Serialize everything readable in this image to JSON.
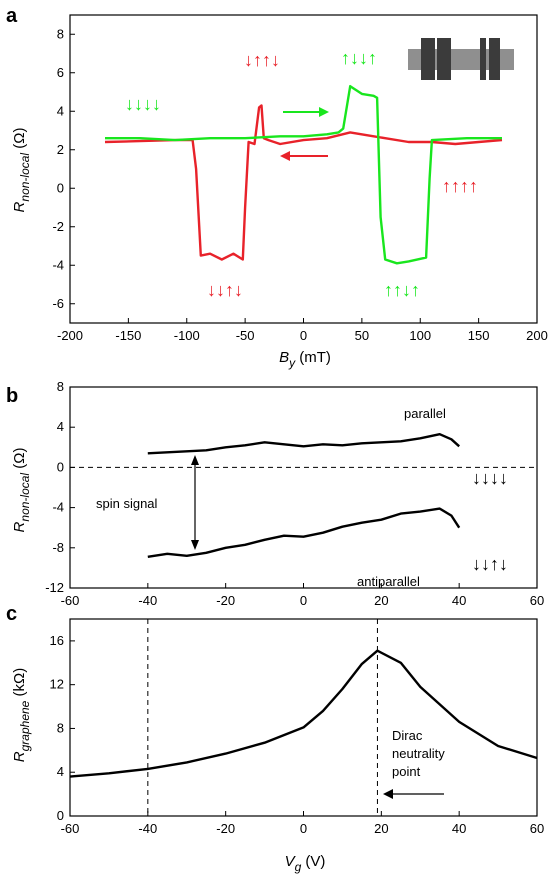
{
  "chart_data": [
    {
      "panel": "a",
      "type": "line",
      "xlabel": "B",
      "xlabel_sub": "y",
      "xunit": " (mT)",
      "ylabel": "R",
      "ylabel_sub": "non-local",
      "yunit": " (Ω)",
      "xlim": [
        -200,
        200
      ],
      "ylim": [
        -7,
        9
      ],
      "xticks": [
        -200,
        -150,
        -100,
        -50,
        0,
        50,
        100,
        150,
        200
      ],
      "yticks": [
        -6,
        -4,
        -2,
        0,
        2,
        4,
        6,
        8
      ],
      "series": [
        {
          "color": "#e8222a",
          "x": [
            -170,
            -140,
            -110,
            -95,
            -92,
            -88,
            -80,
            -70,
            -60,
            -52,
            -50,
            -47,
            -42,
            -38,
            -36,
            -34,
            -30,
            -20,
            0,
            20,
            40,
            60,
            70,
            90,
            110,
            130,
            150,
            170
          ],
          "y": [
            2.4,
            2.45,
            2.5,
            2.5,
            1.0,
            -3.5,
            -3.4,
            -3.7,
            -3.4,
            -3.7,
            -1.0,
            2.4,
            2.3,
            4.2,
            4.3,
            2.6,
            2.5,
            2.3,
            2.5,
            2.6,
            2.9,
            2.7,
            2.6,
            2.4,
            2.4,
            2.3,
            2.4,
            2.5
          ]
        },
        {
          "color": "#19e61e",
          "x": [
            170,
            140,
            110,
            108,
            105,
            90,
            80,
            70,
            66,
            63,
            60,
            50,
            40,
            37,
            34,
            30,
            20,
            0,
            -20,
            -50,
            -80,
            -110,
            -140,
            -170
          ],
          "y": [
            2.6,
            2.6,
            2.5,
            0.5,
            -3.6,
            -3.8,
            -3.9,
            -3.7,
            -1.5,
            4.7,
            4.8,
            4.9,
            5.3,
            4.2,
            3.1,
            2.9,
            2.8,
            2.7,
            2.7,
            2.6,
            2.6,
            2.5,
            2.6,
            2.6
          ]
        }
      ],
      "annotations": {
        "green_down": "↓↓↓↓",
        "red_top": "↓↑↑↓",
        "green_top": "↑↓↓↑",
        "red_right": "↑↑↑↑",
        "red_bottom": "↓↓↑↓",
        "green_bottom": "↑↑↓↑"
      }
    },
    {
      "panel": "b",
      "type": "line",
      "xlim": [
        -60,
        60
      ],
      "ylim": [
        -12,
        8
      ],
      "xticks": [
        -60,
        -40,
        -20,
        0,
        20,
        40,
        60
      ],
      "yticks": [
        -12,
        -8,
        -4,
        0,
        4,
        8
      ],
      "ylabel": "R",
      "ylabel_sub": "non-local",
      "yunit": " (Ω)",
      "series": [
        {
          "name": "parallel",
          "color": "#000000",
          "x": [
            -40,
            -35,
            -30,
            -25,
            -20,
            -15,
            -10,
            -5,
            0,
            5,
            10,
            15,
            20,
            25,
            30,
            35,
            38,
            40
          ],
          "y": [
            1.4,
            1.5,
            1.6,
            1.7,
            2.0,
            2.2,
            2.5,
            2.3,
            2.1,
            2.3,
            2.2,
            2.4,
            2.5,
            2.6,
            2.9,
            3.3,
            2.8,
            2.1
          ]
        },
        {
          "name": "antiparallel",
          "color": "#000000",
          "x": [
            -40,
            -35,
            -30,
            -25,
            -20,
            -15,
            -10,
            -5,
            0,
            5,
            10,
            15,
            20,
            25,
            30,
            35,
            38,
            40
          ],
          "y": [
            -8.9,
            -8.6,
            -8.8,
            -8.5,
            -8.0,
            -7.7,
            -7.2,
            -6.8,
            -6.9,
            -6.5,
            -5.9,
            -5.5,
            -5.2,
            -4.6,
            -4.4,
            -4.1,
            -4.8,
            -6.0
          ]
        }
      ],
      "annotations": {
        "parallel": "parallel",
        "antiparallel": "antiparallel",
        "spin_signal": "spin signal",
        "arrows_parallel": "↓↓↓↓",
        "arrows_antiparallel": "↓↓↑↓"
      }
    },
    {
      "panel": "c",
      "type": "line",
      "xlabel": "V",
      "xlabel_sub": "g",
      "xunit": " (V)",
      "ylabel": "R",
      "ylabel_sub": "graphene",
      "yunit": " (kΩ)",
      "xlim": [
        -60,
        60
      ],
      "ylim": [
        0,
        18
      ],
      "xticks": [
        -60,
        -40,
        -20,
        0,
        20,
        40,
        60
      ],
      "yticks": [
        0,
        4,
        8,
        12,
        16
      ],
      "vlines": [
        -40,
        19
      ],
      "series": [
        {
          "color": "#000000",
          "x": [
            -60,
            -50,
            -40,
            -30,
            -20,
            -10,
            0,
            5,
            10,
            15,
            19,
            25,
            30,
            40,
            50,
            60
          ],
          "y": [
            3.6,
            3.9,
            4.3,
            4.9,
            5.7,
            6.7,
            8.1,
            9.6,
            11.6,
            13.9,
            15.1,
            14.0,
            11.8,
            8.6,
            6.4,
            5.3
          ]
        }
      ],
      "annotations": {
        "dirac_line1": "Dirac",
        "dirac_line2": "neutrality",
        "dirac_line3": "point"
      }
    }
  ]
}
